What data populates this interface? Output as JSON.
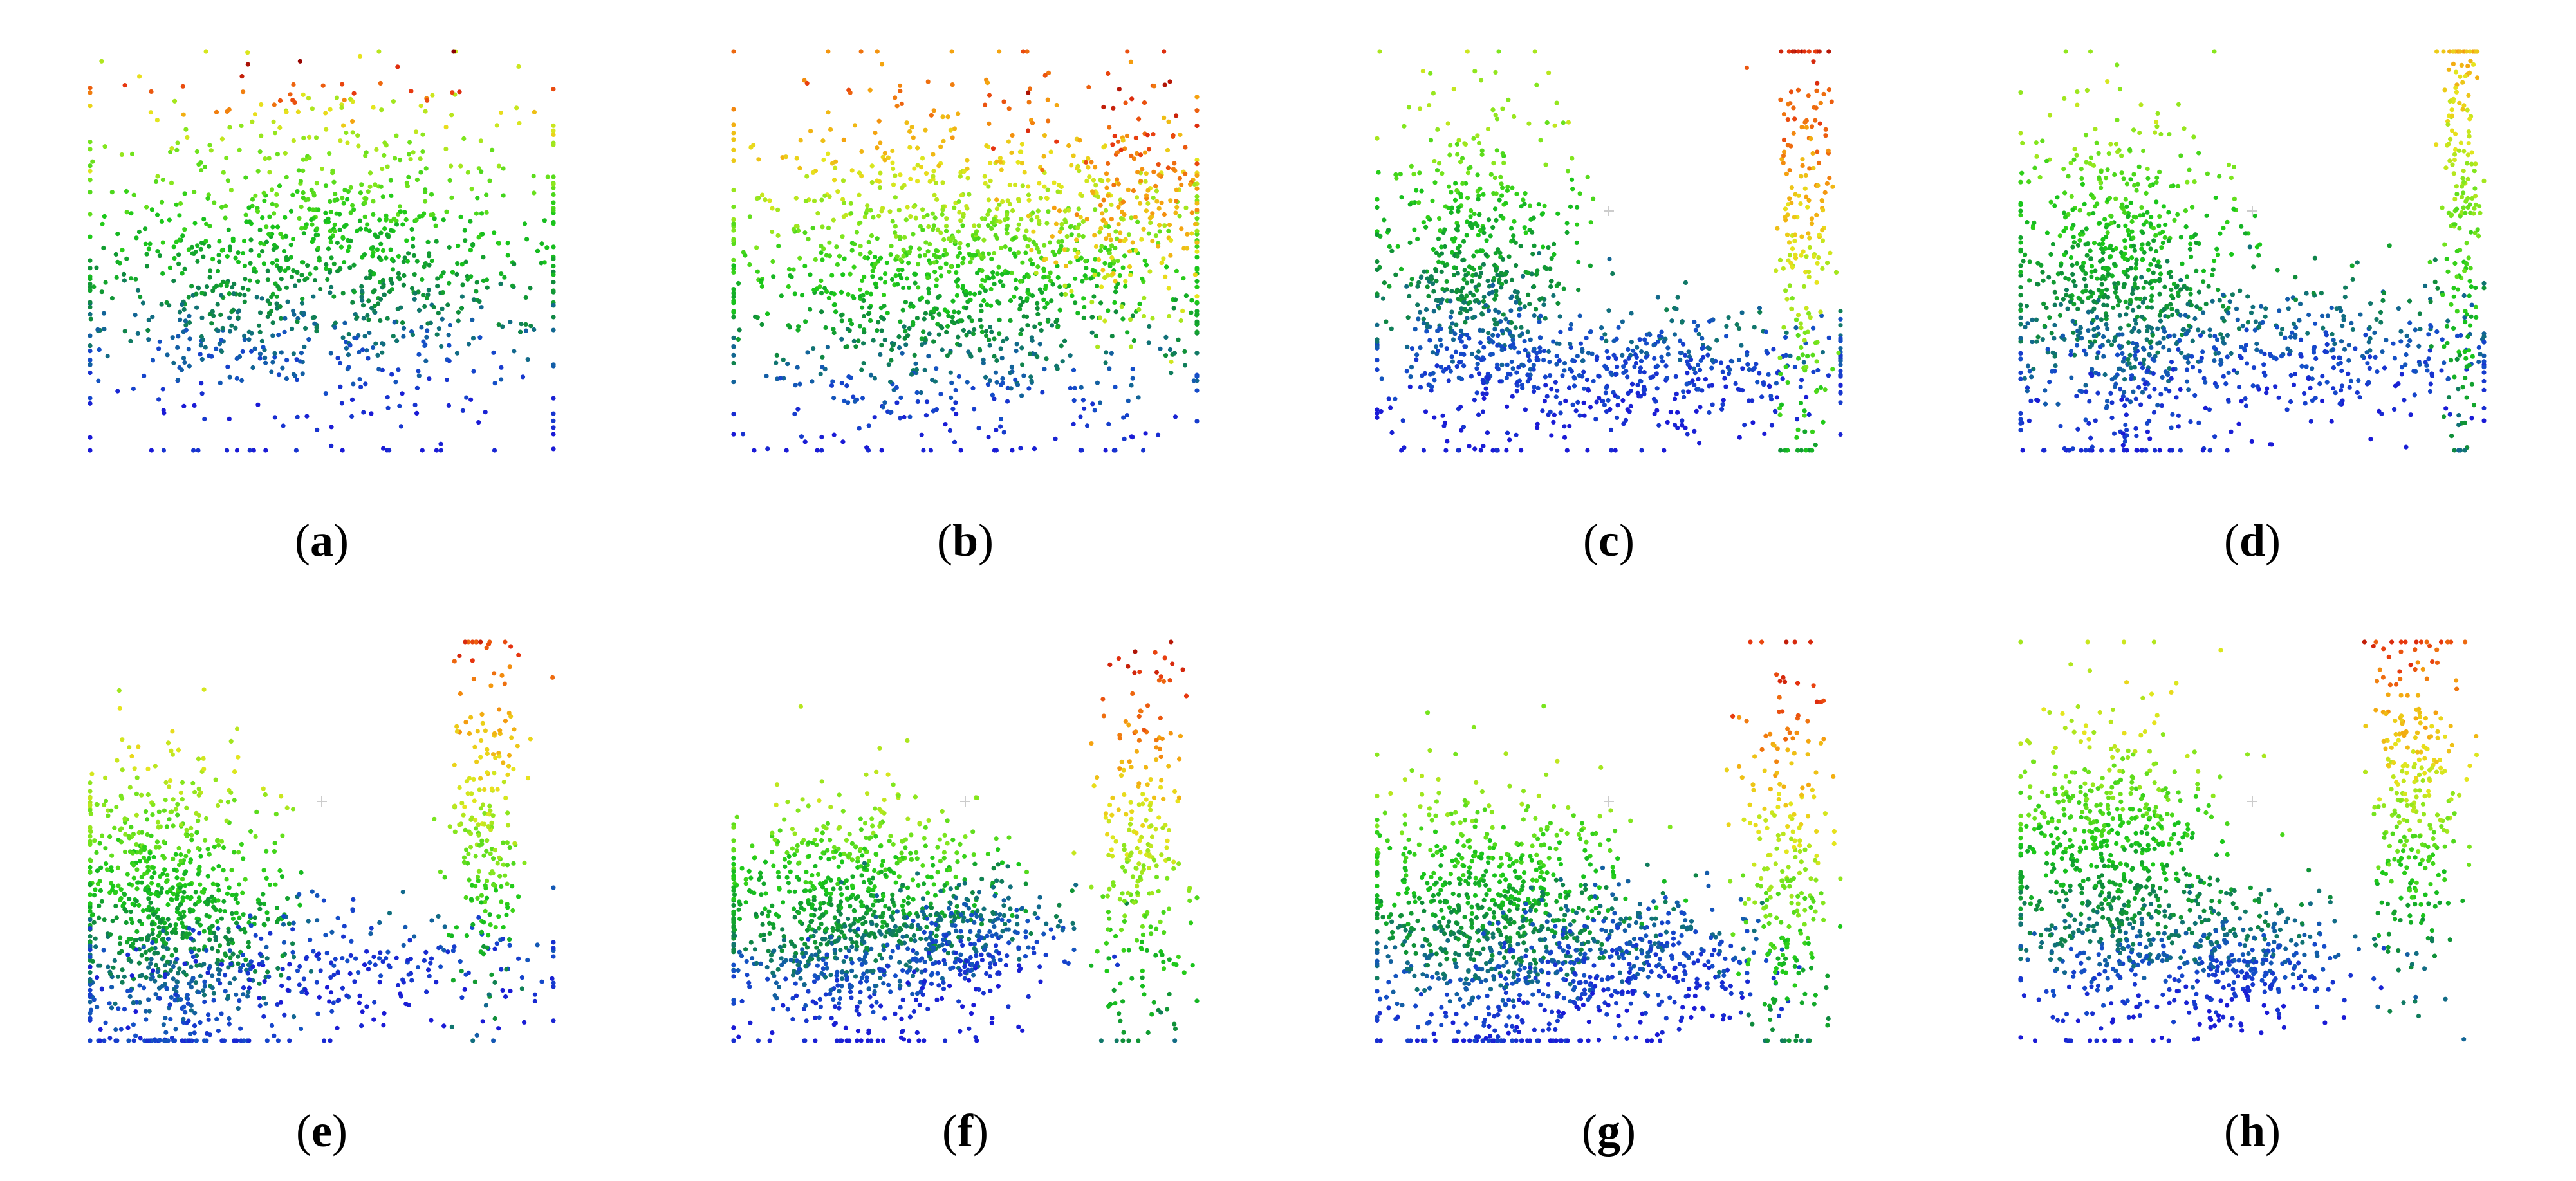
{
  "figure": {
    "background": "#ffffff",
    "colormap": [
      "#1a1ad6",
      "#1450c8",
      "#0f8a3c",
      "#19c819",
      "#7de61e",
      "#e6e61e",
      "#f5a00f",
      "#e6320f",
      "#8b0000"
    ]
  },
  "chart_data": [
    {
      "type": "scatter",
      "panel_label": "a",
      "xlim": [
        0,
        1
      ],
      "ylim": [
        0,
        1
      ],
      "color_encoding": "height",
      "clusters": [
        {
          "cx": 0.5,
          "cy": 0.45,
          "sx": 0.26,
          "sy": 0.2,
          "n": 1100,
          "color_low": 0.0,
          "color_high": 0.6
        },
        {
          "cx": 0.55,
          "cy": 0.88,
          "sx": 0.3,
          "sy": 0.06,
          "n": 40,
          "color_low": 0.6,
          "color_high": 1.0
        }
      ]
    },
    {
      "type": "scatter",
      "panel_label": "b",
      "xlim": [
        0,
        1
      ],
      "ylim": [
        0,
        1
      ],
      "color_encoding": "height",
      "clusters": [
        {
          "cx": 0.5,
          "cy": 0.45,
          "sx": 0.26,
          "sy": 0.22,
          "n": 1300,
          "color_low": 0.0,
          "color_high": 0.8
        },
        {
          "cx": 0.85,
          "cy": 0.6,
          "sx": 0.1,
          "sy": 0.15,
          "n": 200,
          "color_low": 0.55,
          "color_high": 0.9
        }
      ]
    },
    {
      "type": "scatter",
      "panel_label": "c",
      "xlim": [
        0,
        1
      ],
      "ylim": [
        0,
        1
      ],
      "color_encoding": "height",
      "clusters": [
        {
          "cx": 0.22,
          "cy": 0.45,
          "sx": 0.1,
          "sy": 0.2,
          "n": 600,
          "color_low": 0.0,
          "color_high": 0.55
        },
        {
          "cx": 0.55,
          "cy": 0.2,
          "sx": 0.25,
          "sy": 0.08,
          "n": 500,
          "color_low": 0.0,
          "color_high": 0.2
        },
        {
          "cx": 0.92,
          "cy": 0.55,
          "sx": 0.03,
          "sy": 0.3,
          "n": 200,
          "color_low": 0.3,
          "color_high": 1.0
        }
      ]
    },
    {
      "type": "scatter",
      "panel_label": "d",
      "xlim": [
        0,
        1
      ],
      "ylim": [
        0,
        1
      ],
      "color_encoding": "height",
      "clusters": [
        {
          "cx": 0.22,
          "cy": 0.4,
          "sx": 0.12,
          "sy": 0.22,
          "n": 800,
          "color_low": 0.0,
          "color_high": 0.55
        },
        {
          "cx": 0.6,
          "cy": 0.25,
          "sx": 0.25,
          "sy": 0.1,
          "n": 400,
          "color_low": 0.0,
          "color_high": 0.25
        },
        {
          "cx": 0.95,
          "cy": 0.6,
          "sx": 0.02,
          "sy": 0.3,
          "n": 200,
          "color_low": 0.2,
          "color_high": 0.8
        }
      ]
    },
    {
      "type": "scatter",
      "panel_label": "e",
      "xlim": [
        0,
        1
      ],
      "ylim": [
        0,
        1
      ],
      "color_encoding": "height",
      "clusters": [
        {
          "cx": 0.18,
          "cy": 0.3,
          "sx": 0.12,
          "sy": 0.2,
          "n": 900,
          "color_low": 0.0,
          "color_high": 0.6
        },
        {
          "cx": 0.55,
          "cy": 0.2,
          "sx": 0.25,
          "sy": 0.08,
          "n": 250,
          "color_low": 0.0,
          "color_high": 0.15
        },
        {
          "cx": 0.85,
          "cy": 0.55,
          "sx": 0.04,
          "sy": 0.25,
          "n": 220,
          "color_low": 0.2,
          "color_high": 0.9
        }
      ]
    },
    {
      "type": "scatter",
      "panel_label": "f",
      "xlim": [
        0,
        1
      ],
      "ylim": [
        0,
        1
      ],
      "color_encoding": "height",
      "clusters": [
        {
          "cx": 0.25,
          "cy": 0.3,
          "sx": 0.15,
          "sy": 0.15,
          "n": 900,
          "color_low": 0.0,
          "color_high": 0.55
        },
        {
          "cx": 0.5,
          "cy": 0.25,
          "sx": 0.12,
          "sy": 0.08,
          "n": 300,
          "color_low": 0.0,
          "color_high": 0.25
        },
        {
          "cx": 0.88,
          "cy": 0.45,
          "sx": 0.05,
          "sy": 0.25,
          "n": 250,
          "color_low": 0.2,
          "color_high": 0.9
        }
      ]
    },
    {
      "type": "scatter",
      "panel_label": "g",
      "xlim": [
        0,
        1
      ],
      "ylim": [
        0,
        1
      ],
      "color_encoding": "height",
      "clusters": [
        {
          "cx": 0.25,
          "cy": 0.3,
          "sx": 0.15,
          "sy": 0.18,
          "n": 900,
          "color_low": 0.0,
          "color_high": 0.55
        },
        {
          "cx": 0.55,
          "cy": 0.2,
          "sx": 0.15,
          "sy": 0.1,
          "n": 400,
          "color_low": 0.0,
          "color_high": 0.2
        },
        {
          "cx": 0.88,
          "cy": 0.45,
          "sx": 0.05,
          "sy": 0.25,
          "n": 250,
          "color_low": 0.2,
          "color_high": 0.9
        }
      ]
    },
    {
      "type": "scatter",
      "panel_label": "h",
      "xlim": [
        0,
        1
      ],
      "ylim": [
        0,
        1
      ],
      "color_encoding": "height",
      "clusters": [
        {
          "cx": 0.2,
          "cy": 0.4,
          "sx": 0.12,
          "sy": 0.2,
          "n": 800,
          "color_low": 0.0,
          "color_high": 0.6
        },
        {
          "cx": 0.5,
          "cy": 0.2,
          "sx": 0.1,
          "sy": 0.08,
          "n": 300,
          "color_low": 0.0,
          "color_high": 0.25
        },
        {
          "cx": 0.85,
          "cy": 0.6,
          "sx": 0.05,
          "sy": 0.22,
          "n": 300,
          "color_low": 0.2,
          "color_high": 0.9
        }
      ]
    }
  ]
}
